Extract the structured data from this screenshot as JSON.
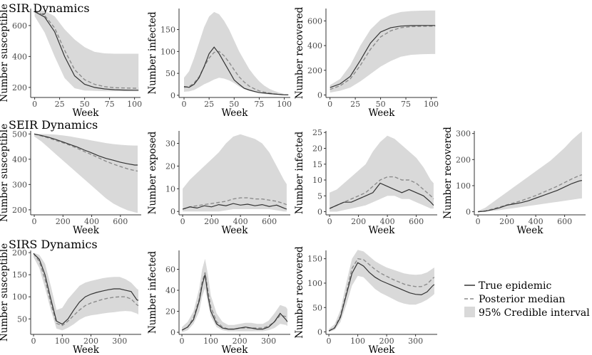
{
  "legend": {
    "true_label": "True epidemic",
    "median_label": "Posterior median",
    "ci_label": "95% Credible interval"
  },
  "colors": {
    "band": "#d9d9d9",
    "true": "#333333",
    "median": "#8c8c8c",
    "axis": "#333333"
  },
  "chart_data": [
    {
      "id": "sir-susceptible",
      "type": "line",
      "row_title": "SIR Dynamics",
      "xlabel": "Week",
      "ylabel": "Number susceptible",
      "xlim": [
        -4,
        106
      ],
      "ylim": [
        135,
        710
      ],
      "xticks": [
        0,
        25,
        50,
        75,
        100
      ],
      "yticks": [
        200,
        400,
        600
      ],
      "x": [
        0,
        10,
        20,
        30,
        40,
        50,
        60,
        70,
        80,
        90,
        100,
        104
      ],
      "true": [
        690,
        655,
        560,
        400,
        275,
        220,
        200,
        190,
        185,
        183,
        182,
        182
      ],
      "median": [
        695,
        665,
        585,
        440,
        315,
        250,
        220,
        205,
        198,
        196,
        195,
        195
      ],
      "lower": [
        660,
        555,
        400,
        260,
        195,
        180,
        178,
        176,
        175,
        175,
        175,
        175
      ],
      "upper": [
        700,
        695,
        660,
        575,
        510,
        460,
        430,
        420,
        418,
        418,
        418,
        418
      ]
    },
    {
      "id": "sir-infected",
      "type": "line",
      "xlabel": "Week",
      "ylabel": "Number infected",
      "xlim": [
        -5,
        106
      ],
      "ylim": [
        -5,
        198
      ],
      "xticks": [
        0,
        25,
        50,
        75,
        100
      ],
      "yticks": [
        0,
        50,
        100,
        150
      ],
      "x": [
        0,
        5,
        10,
        15,
        20,
        25,
        30,
        35,
        40,
        45,
        50,
        55,
        60,
        65,
        70,
        75,
        80,
        85,
        90,
        95,
        100,
        104
      ],
      "true": [
        20,
        18,
        25,
        40,
        65,
        95,
        110,
        95,
        75,
        55,
        35,
        25,
        16,
        12,
        9,
        6,
        5,
        4,
        3,
        2,
        1,
        1
      ],
      "median": [
        18,
        20,
        28,
        42,
        65,
        85,
        98,
        100,
        90,
        75,
        58,
        42,
        30,
        21,
        15,
        10,
        7,
        5,
        3,
        2,
        1,
        1
      ],
      "lower": [
        8,
        9,
        12,
        18,
        25,
        30,
        36,
        40,
        38,
        34,
        28,
        20,
        14,
        10,
        7,
        5,
        3,
        2,
        1,
        0,
        0,
        0
      ],
      "upper": [
        40,
        55,
        85,
        120,
        155,
        180,
        190,
        185,
        170,
        150,
        125,
        100,
        80,
        60,
        45,
        32,
        22,
        15,
        10,
        6,
        3,
        2
      ]
    },
    {
      "id": "sir-recovered",
      "type": "line",
      "xlabel": "Week",
      "ylabel": "Number recovered",
      "xlim": [
        -4,
        106
      ],
      "ylim": [
        -20,
        700
      ],
      "xticks": [
        0,
        25,
        50,
        75,
        100
      ],
      "yticks": [
        0,
        200,
        400,
        600
      ],
      "x": [
        0,
        10,
        20,
        30,
        40,
        50,
        60,
        70,
        80,
        90,
        100,
        104
      ],
      "true": [
        60,
        90,
        150,
        280,
        420,
        510,
        545,
        558,
        562,
        563,
        563,
        563
      ],
      "median": [
        45,
        75,
        130,
        240,
        370,
        470,
        520,
        545,
        553,
        556,
        557,
        557
      ],
      "lower": [
        20,
        35,
        60,
        110,
        170,
        230,
        275,
        310,
        325,
        330,
        332,
        332
      ],
      "upper": [
        80,
        130,
        240,
        400,
        530,
        610,
        650,
        672,
        680,
        683,
        684,
        684
      ]
    },
    {
      "id": "seir-susceptible",
      "type": "line",
      "row_title": "SEIR Dynamics",
      "xlabel": "Week",
      "ylabel": "Number susceptible",
      "xlim": [
        -25,
        745
      ],
      "ylim": [
        180,
        512
      ],
      "xticks": [
        0,
        200,
        400,
        600
      ],
      "yticks": [
        200,
        300,
        400,
        500
      ],
      "x": [
        0,
        50,
        100,
        150,
        200,
        250,
        300,
        350,
        400,
        450,
        500,
        550,
        600,
        650,
        700,
        720
      ],
      "true": [
        500,
        494,
        487,
        478,
        468,
        458,
        448,
        436,
        425,
        413,
        403,
        396,
        388,
        382,
        377,
        377
      ],
      "median": [
        500,
        492,
        484,
        474,
        465,
        455,
        443,
        430,
        418,
        405,
        392,
        381,
        371,
        362,
        355,
        353
      ],
      "lower": [
        490,
        470,
        445,
        420,
        395,
        370,
        345,
        320,
        295,
        270,
        245,
        225,
        210,
        198,
        190,
        188
      ],
      "upper": [
        500,
        500,
        499,
        497,
        494,
        490,
        485,
        480,
        474,
        469,
        464,
        460,
        457,
        455,
        454,
        454
      ]
    },
    {
      "id": "seir-exposed",
      "type": "line",
      "xlabel": "Week",
      "ylabel": "Number exposed",
      "xlim": [
        -25,
        745
      ],
      "ylim": [
        -1.5,
        35.5
      ],
      "xticks": [
        0,
        200,
        400,
        600
      ],
      "yticks": [
        0,
        10,
        20,
        30
      ],
      "x": [
        0,
        50,
        100,
        150,
        200,
        250,
        300,
        350,
        400,
        450,
        500,
        550,
        600,
        650,
        700,
        720
      ],
      "true": [
        1,
        2,
        1.5,
        2.5,
        2,
        3,
        2.5,
        3.5,
        2.8,
        3.2,
        2.5,
        3,
        2.2,
        2.8,
        1.5,
        1
      ],
      "median": [
        1,
        2,
        2.5,
        3,
        3.5,
        4,
        4.5,
        5.5,
        6,
        6,
        5.5,
        5.5,
        5,
        4.5,
        3.5,
        3
      ],
      "lower": [
        0,
        0,
        0,
        0,
        0,
        0,
        0.5,
        1,
        1,
        1,
        1,
        1,
        1,
        0.5,
        0,
        0
      ],
      "upper": [
        10,
        14,
        17,
        20,
        23,
        26,
        30,
        33,
        34,
        33,
        32,
        30,
        26,
        20,
        14,
        12
      ]
    },
    {
      "id": "seir-infected",
      "type": "line",
      "xlabel": "Week",
      "ylabel": "Number infected",
      "xlim": [
        -25,
        745
      ],
      "ylim": [
        -1,
        25.5
      ],
      "xticks": [
        0,
        200,
        400,
        600
      ],
      "yticks": [
        0,
        5,
        10,
        15,
        20,
        25
      ],
      "x": [
        0,
        50,
        100,
        150,
        200,
        250,
        300,
        350,
        400,
        450,
        500,
        550,
        600,
        650,
        700,
        720
      ],
      "true": [
        1,
        2,
        3,
        3,
        4,
        5,
        6,
        9,
        8,
        7,
        6,
        7,
        6,
        5,
        3,
        2
      ],
      "median": [
        1,
        2,
        3,
        4,
        5,
        6,
        8,
        10,
        11,
        11,
        10,
        10,
        9,
        7,
        5,
        4
      ],
      "lower": [
        0,
        0,
        0.5,
        1,
        1.5,
        2,
        3,
        4,
        5,
        5,
        4,
        4,
        3,
        2,
        1,
        1
      ],
      "upper": [
        6,
        7,
        9,
        11,
        13,
        15,
        19,
        22,
        24,
        23,
        21,
        19,
        17,
        14,
        10,
        9
      ]
    },
    {
      "id": "seir-recovered",
      "type": "line",
      "xlabel": "Week",
      "ylabel": "Number recovered",
      "xlim": [
        -25,
        745
      ],
      "ylim": [
        -12,
        310
      ],
      "xticks": [
        0,
        200,
        400,
        600
      ],
      "yticks": [
        0,
        100,
        200,
        300
      ],
      "x": [
        0,
        50,
        100,
        150,
        200,
        250,
        300,
        350,
        400,
        450,
        500,
        550,
        600,
        650,
        700,
        720
      ],
      "true": [
        0,
        2,
        8,
        15,
        25,
        30,
        35,
        42,
        52,
        62,
        72,
        82,
        95,
        108,
        118,
        120
      ],
      "median": [
        0,
        3,
        10,
        18,
        26,
        34,
        42,
        52,
        62,
        74,
        86,
        98,
        112,
        126,
        138,
        142
      ],
      "lower": [
        0,
        1,
        3,
        6,
        10,
        14,
        18,
        22,
        26,
        30,
        34,
        38,
        42,
        46,
        50,
        51
      ],
      "upper": [
        3,
        15,
        35,
        55,
        75,
        95,
        115,
        135,
        155,
        175,
        195,
        220,
        245,
        275,
        300,
        308
      ]
    },
    {
      "id": "sirs-susceptible",
      "type": "line",
      "row_title": "SIRS Dynamics",
      "xlabel": "Week",
      "ylabel": "Number susceptible",
      "xlim": [
        -10,
        375
      ],
      "ylim": [
        15,
        205
      ],
      "xticks": [
        0,
        100,
        200,
        300
      ],
      "yticks": [
        50,
        100,
        150,
        200
      ],
      "x": [
        0,
        20,
        40,
        60,
        80,
        100,
        120,
        140,
        160,
        180,
        200,
        220,
        240,
        260,
        280,
        300,
        320,
        340,
        360,
        365
      ],
      "true": [
        198,
        185,
        150,
        95,
        45,
        38,
        50,
        70,
        88,
        100,
        106,
        110,
        113,
        116,
        118,
        118,
        115,
        112,
        93,
        92
      ],
      "median": [
        198,
        180,
        140,
        85,
        40,
        35,
        45,
        58,
        70,
        80,
        86,
        90,
        94,
        97,
        99,
        100,
        100,
        95,
        82,
        80
      ],
      "lower": [
        190,
        165,
        120,
        70,
        28,
        24,
        30,
        38,
        48,
        55,
        58,
        60,
        62,
        64,
        65,
        67,
        68,
        67,
        62,
        60
      ],
      "upper": [
        200,
        195,
        175,
        125,
        70,
        75,
        95,
        110,
        125,
        132,
        136,
        139,
        142,
        144,
        145,
        145,
        140,
        132,
        118,
        116
      ]
    },
    {
      "id": "sirs-infected",
      "type": "line",
      "xlabel": "Week",
      "ylabel": "Number infected",
      "xlim": [
        -10,
        375
      ],
      "ylim": [
        -2,
        78
      ],
      "xticks": [
        0,
        100,
        200,
        300
      ],
      "yticks": [
        0,
        20,
        40,
        60
      ],
      "x": [
        0,
        20,
        40,
        60,
        70,
        80,
        90,
        100,
        120,
        140,
        160,
        180,
        200,
        220,
        240,
        260,
        280,
        300,
        320,
        340,
        360,
        365
      ],
      "true": [
        2,
        5,
        12,
        30,
        45,
        55,
        35,
        20,
        8,
        4,
        3,
        3,
        4,
        5,
        4,
        3,
        3,
        5,
        10,
        18,
        12,
        10
      ],
      "median": [
        2,
        5,
        14,
        32,
        48,
        57,
        40,
        24,
        10,
        5,
        3,
        3,
        4,
        4,
        4,
        4,
        4,
        6,
        10,
        16,
        15,
        14
      ],
      "lower": [
        0,
        2,
        8,
        20,
        34,
        42,
        28,
        15,
        5,
        2,
        1,
        1,
        1,
        1,
        1,
        1,
        1,
        2,
        4,
        8,
        7,
        6
      ],
      "upper": [
        5,
        10,
        20,
        42,
        60,
        70,
        55,
        35,
        18,
        10,
        7,
        7,
        8,
        9,
        9,
        8,
        8,
        11,
        18,
        26,
        24,
        22
      ]
    },
    {
      "id": "sirs-recovered",
      "type": "line",
      "xlabel": "Week",
      "ylabel": "Number recovered",
      "xlim": [
        -10,
        375
      ],
      "ylim": [
        -5,
        167
      ],
      "xticks": [
        0,
        100,
        200,
        300
      ],
      "yticks": [
        0,
        50,
        100,
        150
      ],
      "x": [
        0,
        20,
        40,
        60,
        80,
        100,
        120,
        140,
        160,
        180,
        200,
        220,
        240,
        260,
        280,
        300,
        320,
        340,
        360,
        365
      ],
      "true": [
        2,
        8,
        30,
        75,
        120,
        142,
        135,
        122,
        112,
        105,
        100,
        95,
        90,
        85,
        80,
        77,
        76,
        82,
        95,
        97
      ],
      "median": [
        2,
        9,
        33,
        80,
        130,
        150,
        148,
        138,
        128,
        120,
        114,
        108,
        103,
        98,
        95,
        93,
        93,
        98,
        110,
        112
      ],
      "lower": [
        0,
        4,
        20,
        55,
        95,
        115,
        112,
        100,
        88,
        80,
        74,
        68,
        62,
        58,
        56,
        56,
        60,
        66,
        75,
        78
      ],
      "upper": [
        6,
        16,
        45,
        100,
        150,
        168,
        165,
        155,
        145,
        138,
        132,
        128,
        124,
        120,
        118,
        117,
        118,
        122,
        130,
        132
      ]
    }
  ]
}
